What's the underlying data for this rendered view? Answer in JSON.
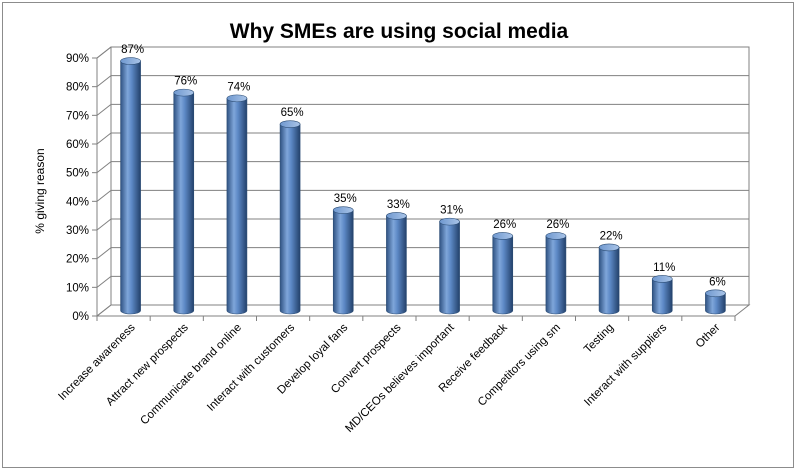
{
  "chart_data": {
    "type": "bar",
    "title": "Why SMEs are using social media",
    "xlabel": "",
    "ylabel": "% giving reason",
    "ylim": [
      0,
      90
    ],
    "ytick_step": 10,
    "ytick_suffix": "%",
    "categories": [
      "Increase awareness",
      "Attract new prospects",
      "Communicate brand online",
      "Interact with customers",
      "Develop loyal fans",
      "Convert prospects",
      "MD/CEOs believes important",
      "Receive feedback",
      "Competitors using sm",
      "Testing",
      "Interact with suppliers",
      "Other"
    ],
    "values": [
      87,
      76,
      74,
      65,
      35,
      33,
      31,
      26,
      26,
      22,
      11,
      6
    ],
    "data_labels": [
      "87%",
      "76%",
      "74%",
      "65%",
      "35%",
      "33%",
      "31%",
      "26%",
      "26%",
      "22%",
      "11%",
      "6%"
    ],
    "grid": true,
    "legend": "none",
    "style": "3d-cylinder",
    "colors": {
      "bar": "#4f81bd",
      "bar_dark": "#2c4d75",
      "bar_light": "#9cb9e2",
      "grid": "#808080"
    }
  }
}
